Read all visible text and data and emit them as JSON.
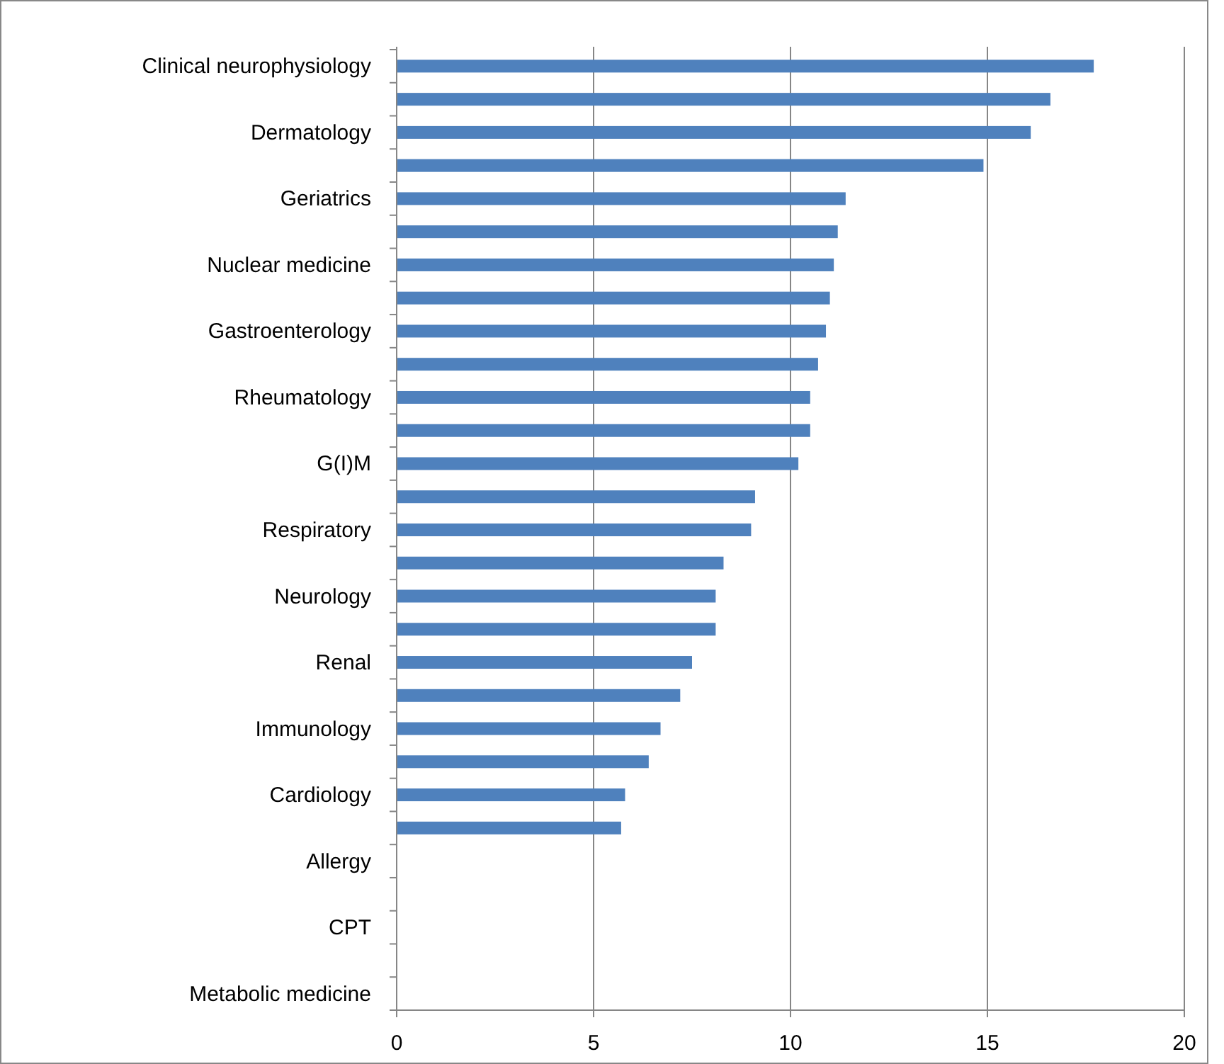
{
  "chart_data": {
    "type": "bar",
    "orientation": "horizontal",
    "categories": [
      "Clinical neurophysiology",
      null,
      "Dermatology",
      null,
      "Geriatrics",
      null,
      "Nuclear medicine",
      null,
      "Gastroenterology",
      null,
      "Rheumatology",
      null,
      "G(I)M",
      null,
      "Respiratory",
      null,
      "Neurology",
      null,
      "Renal",
      null,
      "Immunology",
      null,
      "Cardiology",
      null,
      "Allergy",
      null,
      "CPT",
      null,
      "Metabolic medicine"
    ],
    "values": [
      17.7,
      16.6,
      16.1,
      14.9,
      11.4,
      11.2,
      11.1,
      11.0,
      10.9,
      10.7,
      10.5,
      10.5,
      10.2,
      9.1,
      9.0,
      8.3,
      8.1,
      8.1,
      7.5,
      7.2,
      6.7,
      6.4,
      5.8,
      5.7,
      0,
      0,
      0,
      0,
      0
    ],
    "color": "#4f81bd",
    "xlim": [
      0,
      20
    ],
    "xticks": [
      0,
      5,
      10,
      15,
      20
    ],
    "grid": "x"
  }
}
